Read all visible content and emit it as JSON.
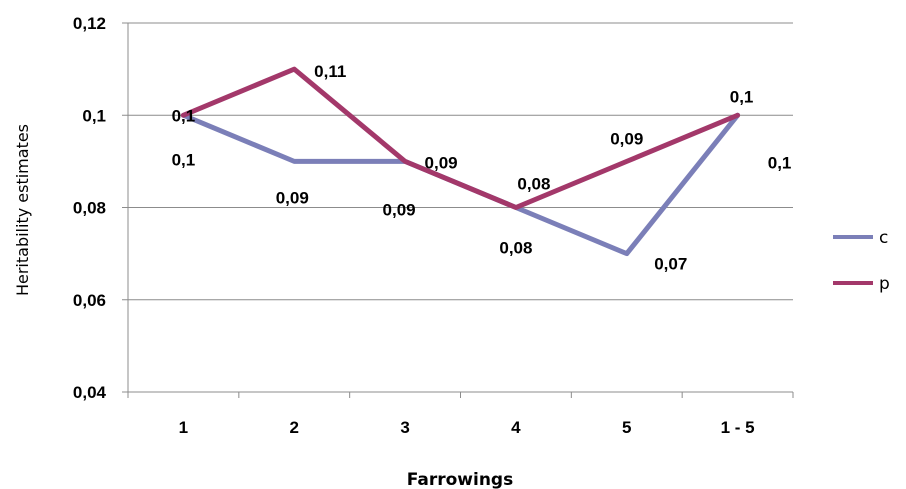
{
  "chart_data": {
    "type": "line",
    "categories": [
      "1",
      "2",
      "3",
      "4",
      "5",
      "1 - 5"
    ],
    "series": [
      {
        "name": "c",
        "values": [
          0.1,
          0.09,
          0.09,
          0.08,
          0.07,
          0.1
        ],
        "labels": [
          "0,1",
          "0,09",
          "0,09",
          "0,08",
          "0,07",
          "0,1"
        ],
        "color": "#7b7fb8"
      },
      {
        "name": "p",
        "values": [
          0.1,
          0.11,
          0.09,
          0.08,
          0.09,
          0.1
        ],
        "labels": [
          "0,1",
          "0,11",
          "0,09",
          "0,08",
          "0,09",
          "0,1"
        ],
        "color": "#a3386a"
      }
    ],
    "xlabel": "Farrowings",
    "ylabel": "Heritability estimates",
    "ylim": [
      0.04,
      0.12
    ],
    "yticks": [
      0.04,
      0.06,
      0.08,
      0.1,
      0.12
    ],
    "ytick_labels": [
      "0,04",
      "0,06",
      "0,08",
      "0,1",
      "0,12"
    ],
    "grid": true,
    "legend_position": "right"
  }
}
